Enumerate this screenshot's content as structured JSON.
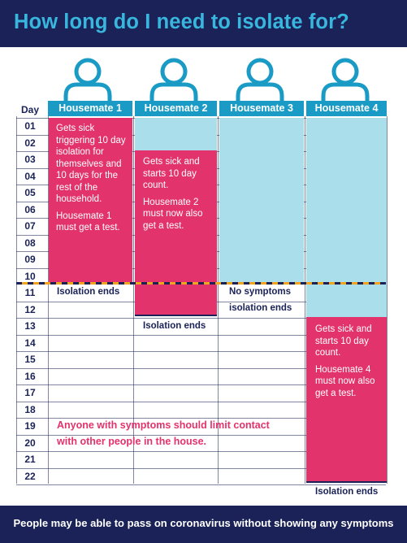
{
  "title": "How long do I need to isolate for?",
  "footer": "People may be able to pass on coronavirus without showing any symptoms",
  "day_label": "Day",
  "days": [
    "01",
    "02",
    "03",
    "04",
    "05",
    "06",
    "07",
    "08",
    "09",
    "10",
    "11",
    "12",
    "13",
    "14",
    "15",
    "16",
    "17",
    "18",
    "19",
    "20",
    "21",
    "22"
  ],
  "housemates": [
    "Housemate 1",
    "Housemate 2",
    "Housemate 3",
    "Housemate 4"
  ],
  "h1_text": [
    "Gets sick triggering 10 day isolation for themselves and 10 days for the rest of the household.",
    "Housemate 1 must get a test."
  ],
  "h2_text": [
    "Gets sick and starts 10 day count.",
    "Housemate 2 must now also get a test."
  ],
  "h4_text": [
    "Gets sick and starts 10 day count.",
    "Housemate 4 must now also get a test."
  ],
  "notes": {
    "h1_end": "Isolation ends",
    "h2_end": "Isolation ends",
    "h3_line1": "No symptoms",
    "h3_line2": "isolation ends",
    "h4_end": "Isolation ends"
  },
  "bottom_lines": [
    "Anyone with symptoms should limit contact",
    "with other people in the house."
  ],
  "colors": {
    "navy": "#1a2257",
    "teal": "#1a9bc6",
    "title": "#39b6dd",
    "pink": "#e3336c",
    "lightblue": "#aadeea",
    "orange": "#f2a41f"
  },
  "icons": [
    "person-icon"
  ]
}
